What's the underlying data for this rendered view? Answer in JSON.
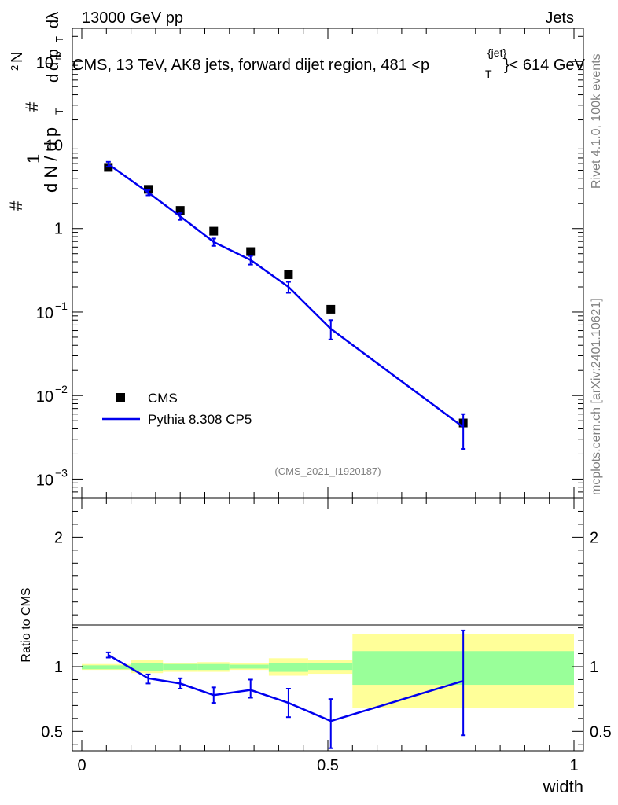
{
  "header": {
    "left": "13000 GeV pp",
    "right": "Jets",
    "plot_title": "CMS, 13 TeV, AK8 jets, forward dijet region, 481 <p",
    "title_sub": "T",
    "title_sup": "{jet}",
    "title_end": "}< 614 GeV"
  },
  "side_labels": {
    "rivet": "Rivet 4.1.0,  100k events",
    "mcplots": "mcplots.cern.ch [arXiv:2401.10621]"
  },
  "watermark": "(CMS_2021_I1920187)",
  "colors": {
    "data": "#000000",
    "mc": "#0000ee",
    "band_inner": "#99ff99",
    "band_outer": "#ffff99"
  },
  "chart_data": {
    "type": "scatter",
    "x_label": "width",
    "x_range": [
      0,
      1
    ],
    "x_ticks": [
      "0",
      "0.5",
      "1"
    ],
    "top_panel": {
      "y_scale": "log",
      "y_range": [
        0.0006,
        250
      ],
      "y_ticks": [
        {
          "value": 100,
          "base": "10",
          "exp": "2"
        },
        {
          "value": 10,
          "base": "10",
          "exp": ""
        },
        {
          "value": 1,
          "base": "1",
          "exp": ""
        },
        {
          "value": 0.1,
          "base": "10",
          "exp": "−1"
        },
        {
          "value": 0.01,
          "base": "10",
          "exp": "−2"
        },
        {
          "value": 0.001,
          "base": "10",
          "exp": "−3"
        }
      ],
      "y_label_parts": [
        "#",
        "1",
        "d N / d p",
        "T",
        "#",
        "d",
        "2",
        "N",
        "d p",
        "T",
        "dλ"
      ],
      "legend": [
        {
          "name": "CMS",
          "marker": "square"
        },
        {
          "name": "Pythia 8.308 CP5",
          "marker": "line"
        }
      ],
      "cms": {
        "x": [
          0.054,
          0.135,
          0.2,
          0.268,
          0.343,
          0.42,
          0.506,
          0.775
        ],
        "y": [
          5.4,
          2.95,
          1.65,
          0.93,
          0.53,
          0.28,
          0.108,
          0.0047
        ]
      },
      "pythia": {
        "x": [
          0.054,
          0.135,
          0.2,
          0.268,
          0.343,
          0.42,
          0.506,
          0.775
        ],
        "y": [
          5.9,
          2.7,
          1.4,
          0.69,
          0.42,
          0.2,
          0.063,
          0.0042
        ],
        "err_lo": [
          5.5,
          2.5,
          1.27,
          0.62,
          0.37,
          0.17,
          0.047,
          0.0023
        ],
        "err_hi": [
          6.3,
          2.9,
          1.53,
          0.76,
          0.47,
          0.23,
          0.08,
          0.006
        ]
      }
    },
    "bottom_panel": {
      "y_label": "Ratio to CMS",
      "y_range": [
        0.35,
        2.3
      ],
      "y_ticks": [
        "0.5",
        "1",
        "2"
      ],
      "reference": 1,
      "bands": [
        {
          "x0": 0.0,
          "x1": 0.1,
          "in_lo": 0.98,
          "in_hi": 1.01,
          "out_lo": 0.975,
          "out_hi": 1.02
        },
        {
          "x0": 0.1,
          "x1": 0.165,
          "in_lo": 0.97,
          "in_hi": 1.03,
          "out_lo": 0.95,
          "out_hi": 1.05
        },
        {
          "x0": 0.165,
          "x1": 0.235,
          "in_lo": 0.975,
          "in_hi": 1.02,
          "out_lo": 0.96,
          "out_hi": 1.03
        },
        {
          "x0": 0.235,
          "x1": 0.3,
          "in_lo": 0.975,
          "in_hi": 1.02,
          "out_lo": 0.96,
          "out_hi": 1.035
        },
        {
          "x0": 0.3,
          "x1": 0.38,
          "in_lo": 0.985,
          "in_hi": 1.015,
          "out_lo": 0.975,
          "out_hi": 1.025
        },
        {
          "x0": 0.38,
          "x1": 0.46,
          "in_lo": 0.96,
          "in_hi": 1.03,
          "out_lo": 0.93,
          "out_hi": 1.065
        },
        {
          "x0": 0.46,
          "x1": 0.55,
          "in_lo": 0.975,
          "in_hi": 1.025,
          "out_lo": 0.945,
          "out_hi": 1.05
        },
        {
          "x0": 0.55,
          "x1": 1.0,
          "in_lo": 0.86,
          "in_hi": 1.12,
          "out_lo": 0.68,
          "out_hi": 1.25
        }
      ],
      "ratio": {
        "x": [
          0.054,
          0.135,
          0.2,
          0.268,
          0.343,
          0.42,
          0.506,
          0.775
        ],
        "y": [
          1.09,
          0.91,
          0.87,
          0.78,
          0.82,
          0.72,
          0.58,
          0.89
        ],
        "err_lo": [
          1.07,
          0.87,
          0.83,
          0.72,
          0.76,
          0.61,
          0.37,
          0.47
        ],
        "err_hi": [
          1.11,
          0.94,
          0.91,
          0.84,
          0.9,
          0.83,
          0.75,
          1.28
        ]
      }
    }
  }
}
